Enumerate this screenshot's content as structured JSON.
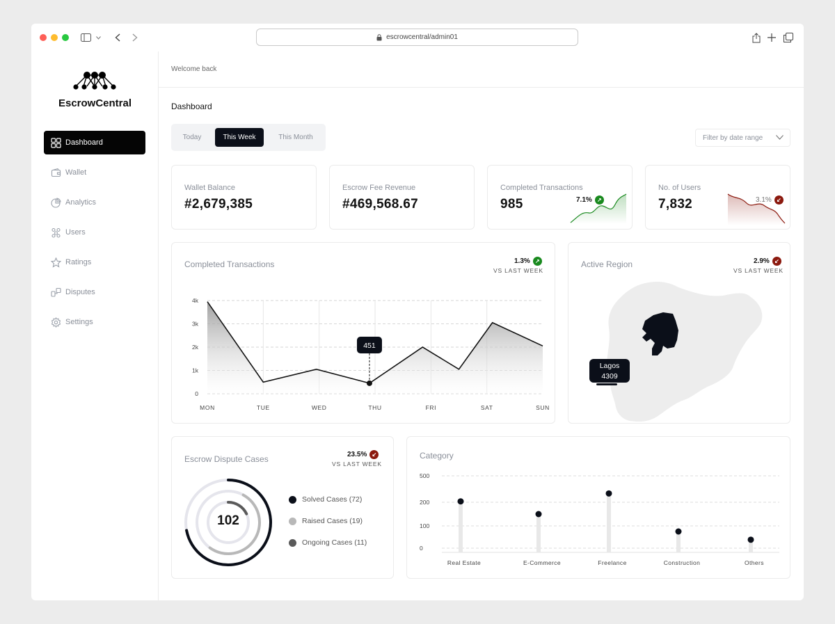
{
  "browser": {
    "url": "escrowcentral/admin01"
  },
  "brand": {
    "name": "EscrowCentral"
  },
  "sidebar": {
    "items": [
      {
        "label": "Dashboard",
        "icon": "grid-icon",
        "active": true
      },
      {
        "label": "Wallet",
        "icon": "wallet-icon"
      },
      {
        "label": "Analytics",
        "icon": "pie-icon"
      },
      {
        "label": "Users",
        "icon": "users-icon"
      },
      {
        "label": "Ratings",
        "icon": "star-icon"
      },
      {
        "label": "Disputes",
        "icon": "disputes-icon"
      },
      {
        "label": "Settings",
        "icon": "gear-icon"
      }
    ]
  },
  "header": {
    "welcome": "Welcome back",
    "title": "Dashboard"
  },
  "period_tabs": [
    "Today",
    "This Week",
    "This Month"
  ],
  "period_selected": "This Week",
  "filter": {
    "label": "Filter by date range"
  },
  "kpis": [
    {
      "label": "Wallet Balance",
      "value": "#2,679,385"
    },
    {
      "label": "Escrow Fee Revenue",
      "value": "#469,568.67"
    },
    {
      "label": "Completed Transactions",
      "value": "985",
      "change": "7.1%",
      "direction": "up"
    },
    {
      "label": "No. of Users",
      "value": "7,832",
      "change": "3.1%",
      "direction": "down"
    }
  ],
  "colors": {
    "up": "#1a8a1f",
    "down": "#8c1a0f",
    "ink": "#0b0f19"
  },
  "completed_card": {
    "title": "Completed Transactions",
    "change": "1.3%",
    "direction": "up",
    "vs": "VS LAST WEEK"
  },
  "region_card": {
    "title": "Active Region",
    "change": "2.9%",
    "direction": "down",
    "vs": "VS LAST WEEK",
    "tooltip_label": "Lagos",
    "tooltip_value": "4309"
  },
  "dispute_card": {
    "title": "Escrow Dispute Cases",
    "change": "23.5%",
    "direction": "down",
    "vs": "VS LAST WEEK",
    "total": "102",
    "legend": [
      {
        "label": "Solved Cases (72)",
        "value": 72,
        "color": "#0b0f19"
      },
      {
        "label": "Raised Cases (19)",
        "value": 19,
        "color": "#b8b8b8"
      },
      {
        "label": "Ongoing Cases (11)",
        "value": 11,
        "color": "#5a5a5a"
      }
    ]
  },
  "category_card": {
    "title": "Category"
  },
  "chart_data": [
    {
      "type": "area",
      "title": "Completed Transactions",
      "categories": [
        "MON",
        "TUE",
        "WED",
        "THU",
        "FRI",
        "SAT",
        "SUN"
      ],
      "x": [
        0,
        1,
        1.95,
        2.9,
        3.85,
        4.5,
        5.1,
        6
      ],
      "y": [
        3950,
        500,
        1050,
        451,
        2000,
        1050,
        3050,
        2050
      ],
      "yticks": [
        "4k",
        "3k",
        "2k",
        "1k",
        "0"
      ],
      "ylim": [
        0,
        4000
      ],
      "highlight": {
        "label": "451",
        "y": 451
      },
      "grid": true
    },
    {
      "type": "scatter",
      "title": "Category",
      "categories": [
        "Real Estate",
        "E-Commerce",
        "Freelance",
        "Construction",
        "Others"
      ],
      "values": [
        210,
        150,
        300,
        75,
        38
      ],
      "yticks": [
        "500",
        "200",
        "100",
        "0"
      ],
      "grid": true
    },
    {
      "type": "pie",
      "title": "Escrow Dispute Cases",
      "categories": [
        "Solved Cases",
        "Raised Cases",
        "Ongoing Cases"
      ],
      "values": [
        72,
        19,
        11
      ]
    }
  ]
}
